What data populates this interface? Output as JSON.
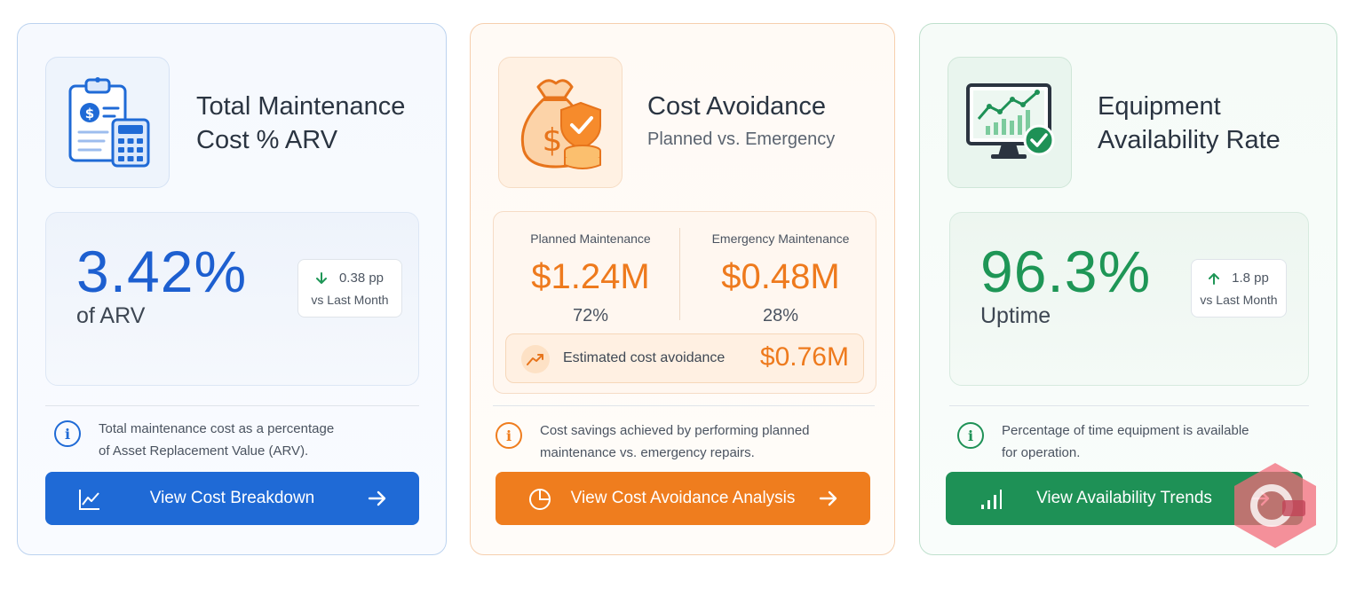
{
  "cards": {
    "arv": {
      "title_line1": "Total Maintenance",
      "title_line2": "Cost % ARV",
      "icon": "clipboard-calculator-icon",
      "value": "3.42%",
      "value_label": "of ARV",
      "delta_value": "0.38 pp",
      "delta_direction": "down",
      "delta_label": "vs Last Month",
      "description_line1": "Total maintenance cost as a percentage",
      "description_line2": "of Asset Replacement Value (ARV).",
      "button_label": "View Cost Breakdown",
      "accent": "#1f6ad6"
    },
    "cost_avoidance": {
      "title": "Cost Avoidance",
      "subtitle": "Planned vs. Emergency",
      "icon": "money-bag-shield-icon",
      "planned_label": "Planned Maintenance",
      "planned_value": "$1.24M",
      "planned_pct": "72%",
      "emergency_label": "Emergency Maintenance",
      "emergency_value": "$0.48M",
      "emergency_pct": "28%",
      "avoidance_label": "Estimated cost avoidance",
      "avoidance_value": "$0.76M",
      "description_line1": "Cost savings achieved by performing planned",
      "description_line2": "maintenance vs. emergency repairs.",
      "button_label": "View Cost Avoidance Analysis",
      "accent": "#ef7d1e"
    },
    "availability": {
      "title_line1": "Equipment",
      "title_line2": "Availability Rate",
      "icon": "monitor-chart-check-icon",
      "value": "96.3%",
      "value_label": "Uptime",
      "delta_value": "1.8 pp",
      "delta_direction": "up",
      "delta_label": "vs Last Month",
      "description_line1": "Percentage of time equipment is available",
      "description_line2": "for operation.",
      "button_label": "View Availability Trends",
      "accent": "#1e9156"
    }
  }
}
